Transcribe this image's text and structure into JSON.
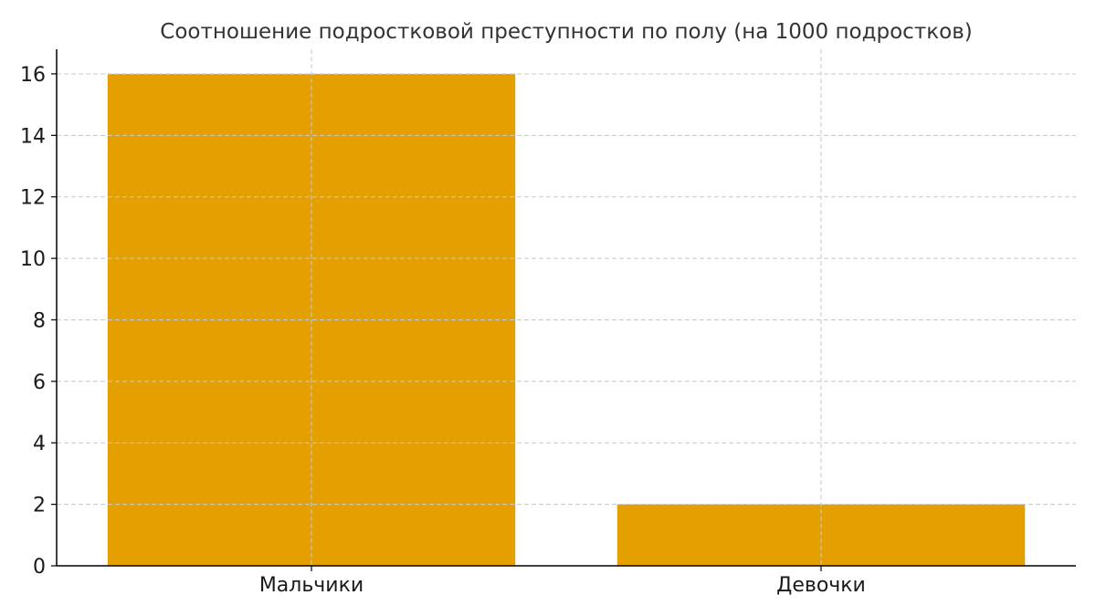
{
  "chart_data": {
    "type": "bar",
    "title": "Соотношение подростковой преступности по полу (на 1000 подростков)",
    "categories": [
      "Мальчики",
      "Девочки"
    ],
    "values": [
      16,
      2
    ],
    "xlabel": "",
    "ylabel": "",
    "ylim": [
      0,
      16.8
    ],
    "yticks": [
      0,
      2,
      4,
      6,
      8,
      10,
      12,
      14,
      16
    ],
    "grid": true,
    "bar_color": "#E3A000"
  }
}
